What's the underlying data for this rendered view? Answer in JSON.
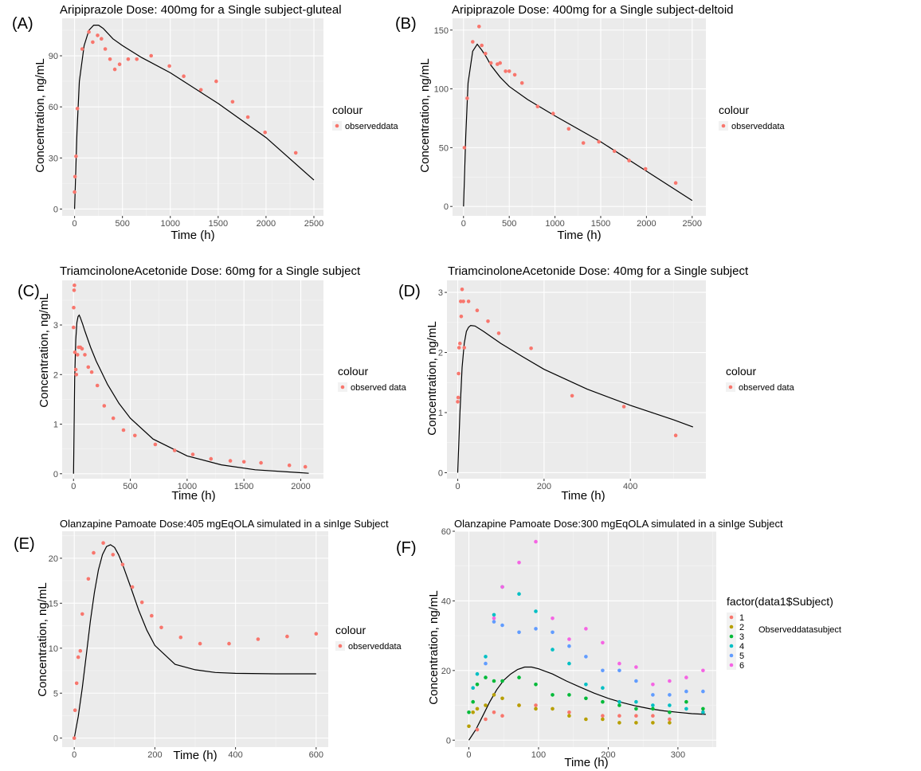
{
  "chart_data": [
    {
      "panel": "(A)",
      "type": "scatter",
      "title": "Aripiprazole  Dose: 400mg for a Single subject-gluteal",
      "xlabel": "Time (h)",
      "ylabel": "Concentration, ng/mL",
      "xlim": [
        -130,
        2600
      ],
      "ylim": [
        -4,
        112
      ],
      "xticks": [
        0,
        500,
        1000,
        1500,
        2000,
        2500
      ],
      "yticks": [
        0,
        30,
        60,
        90
      ],
      "grid": true,
      "legend": {
        "title": "colour",
        "entries": [
          "observeddata"
        ],
        "placement": "right"
      },
      "series": [
        {
          "name": "observeddata",
          "kind": "points",
          "color": "#F8766D",
          "x": [
            0,
            5,
            15,
            30,
            80,
            150,
            190,
            240,
            280,
            320,
            370,
            420,
            470,
            560,
            650,
            800,
            990,
            1140,
            1320,
            1480,
            1650,
            1810,
            1990,
            2310
          ],
          "y": [
            10,
            19,
            31,
            59,
            94,
            104,
            98,
            102,
            100,
            94,
            88,
            82,
            85,
            88,
            88,
            90,
            84,
            78,
            70,
            75,
            63,
            54,
            45,
            33
          ]
        },
        {
          "kind": "line",
          "color": "#000000",
          "x": [
            0,
            25,
            50,
            100,
            150,
            200,
            250,
            300,
            400,
            500,
            700,
            1000,
            1500,
            2000,
            2500
          ],
          "y": [
            0,
            45,
            75,
            96,
            105,
            108,
            108,
            106,
            100,
            96,
            89,
            80,
            62,
            42,
            17
          ]
        }
      ]
    },
    {
      "panel": "(B)",
      "type": "scatter",
      "title": "Aripiprazole  Dose: 400mg for a Single subject-deltoid",
      "xlabel": "Time (h)",
      "ylabel": "Concentration, ng/mL",
      "xlim": [
        -120,
        2650
      ],
      "ylim": [
        -8,
        160
      ],
      "xticks": [
        0,
        500,
        1000,
        1500,
        2000,
        2500
      ],
      "yticks": [
        0,
        50,
        100,
        150
      ],
      "grid": true,
      "legend": {
        "title": "colour",
        "entries": [
          "observeddata"
        ],
        "placement": "right"
      },
      "series": [
        {
          "name": "observeddata",
          "kind": "points",
          "color": "#F8766D",
          "x": [
            10,
            40,
            100,
            170,
            200,
            240,
            300,
            370,
            400,
            460,
            500,
            560,
            640,
            810,
            980,
            1150,
            1310,
            1480,
            1650,
            1810,
            1990,
            2320
          ],
          "y": [
            50,
            92,
            140,
            153,
            137,
            130,
            122,
            121,
            122,
            115,
            115,
            112,
            105,
            85,
            79,
            66,
            54,
            55,
            47,
            39,
            32,
            20
          ]
        },
        {
          "kind": "line",
          "color": "#000000",
          "x": [
            0,
            25,
            50,
            100,
            150,
            200,
            250,
            300,
            400,
            500,
            700,
            1000,
            1500,
            2000,
            2500
          ],
          "y": [
            0,
            60,
            105,
            132,
            138,
            133,
            127,
            120,
            110,
            102,
            91,
            77,
            55,
            30,
            5
          ]
        }
      ]
    },
    {
      "panel": "(C)",
      "type": "scatter",
      "title": "TriamcinoloneAcetonide  Dose: 60mg for a Single subject",
      "xlabel": "Time (h)",
      "ylabel": "Concentration, ng/mL",
      "xlim": [
        -100,
        2200
      ],
      "ylim": [
        -0.1,
        3.9
      ],
      "xticks": [
        0,
        500,
        1000,
        1500,
        2000
      ],
      "yticks": [
        0,
        1,
        2,
        3
      ],
      "grid": true,
      "legend": {
        "title": "colour",
        "entries": [
          "observed data"
        ],
        "placement": "right"
      },
      "series": [
        {
          "name": "observed data",
          "kind": "points",
          "color": "#F8766D",
          "x": [
            0,
            2,
            5,
            8,
            12,
            20,
            25,
            35,
            45,
            60,
            75,
            100,
            130,
            160,
            210,
            270,
            350,
            440,
            540,
            720,
            890,
            1050,
            1210,
            1380,
            1500,
            1650,
            1900,
            2040
          ],
          "y": [
            2.95,
            3.35,
            3.7,
            3.8,
            2.45,
            2.1,
            2.0,
            2.4,
            2.55,
            2.55,
            2.52,
            2.4,
            2.15,
            2.05,
            1.78,
            1.37,
            1.12,
            0.88,
            0.77,
            0.59,
            0.47,
            0.39,
            0.3,
            0.26,
            0.24,
            0.22,
            0.17,
            0.14
          ]
        },
        {
          "kind": "line",
          "color": "#000000",
          "x": [
            0,
            10,
            20,
            30,
            40,
            50,
            60,
            80,
            100,
            150,
            200,
            300,
            400,
            500,
            700,
            1000,
            1300,
            1600,
            2000,
            2070
          ],
          "y": [
            0,
            1.9,
            2.7,
            3.05,
            3.17,
            3.2,
            3.15,
            3.02,
            2.88,
            2.55,
            2.27,
            1.8,
            1.42,
            1.12,
            0.7,
            0.36,
            0.18,
            0.08,
            0.02,
            0.01
          ]
        }
      ]
    },
    {
      "panel": "(D)",
      "type": "scatter",
      "title": "TriamcinoloneAcetonide  Dose: 40mg for a Single subject",
      "xlabel": "Time (h)",
      "ylabel": "Concentration, ng/mL",
      "xlim": [
        -25,
        575
      ],
      "ylim": [
        -0.1,
        3.2
      ],
      "xticks": [
        0,
        200,
        400
      ],
      "yticks": [
        0,
        1,
        2,
        3
      ],
      "grid": true,
      "legend": {
        "title": "colour",
        "entries": [
          "observed data"
        ],
        "placement": "right"
      },
      "series": [
        {
          "name": "observed data",
          "kind": "points",
          "color": "#F8766D",
          "x": [
            0,
            1,
            2,
            3,
            5,
            7,
            8,
            10,
            13,
            15,
            25,
            45,
            70,
            95,
            170,
            265,
            385,
            505
          ],
          "y": [
            1.18,
            1.25,
            1.65,
            2.08,
            2.15,
            2.85,
            2.6,
            3.05,
            2.85,
            2.08,
            2.85,
            2.7,
            2.52,
            2.32,
            2.07,
            1.28,
            1.1,
            0.62
          ]
        },
        {
          "kind": "line",
          "color": "#000000",
          "x": [
            0,
            5,
            10,
            15,
            20,
            25,
            30,
            40,
            60,
            80,
            100,
            150,
            200,
            300,
            400,
            500,
            545
          ],
          "y": [
            0,
            1.0,
            1.75,
            2.15,
            2.35,
            2.42,
            2.45,
            2.44,
            2.35,
            2.25,
            2.15,
            1.93,
            1.72,
            1.39,
            1.12,
            0.88,
            0.76
          ]
        }
      ]
    },
    {
      "panel": "(E)",
      "type": "scatter",
      "title": "Olanzapine Pamoate Dose:405 mgEqOLA simulated in a sinIge Subject",
      "xlabel": "Time (h)",
      "ylabel": "Concentration, ng/mL",
      "xlim": [
        -30,
        630
      ],
      "ylim": [
        -1,
        23
      ],
      "xticks": [
        0,
        200,
        400,
        600
      ],
      "yticks": [
        0,
        5,
        10,
        15,
        20
      ],
      "grid": true,
      "legend": {
        "title": "colour",
        "entries": [
          "observeddata"
        ],
        "placement": "right"
      },
      "series": [
        {
          "name": "observeddata",
          "kind": "points",
          "color": "#F8766D",
          "x": [
            0,
            2,
            6,
            10,
            15,
            20,
            35,
            48,
            72,
            96,
            120,
            144,
            168,
            192,
            216,
            264,
            312,
            384,
            456,
            528,
            600
          ],
          "y": [
            0,
            3.1,
            6.1,
            9.0,
            9.7,
            13.8,
            17.7,
            20.6,
            21.7,
            20.4,
            19.3,
            16.8,
            15.1,
            13.6,
            12.3,
            11.2,
            10.5,
            10.5,
            11.0,
            11.3,
            11.6
          ]
        },
        {
          "kind": "line",
          "color": "#000000",
          "x": [
            0,
            10,
            20,
            30,
            40,
            50,
            60,
            70,
            80,
            90,
            100,
            110,
            120,
            140,
            160,
            180,
            200,
            250,
            300,
            350,
            400,
            500,
            600
          ],
          "y": [
            0,
            2.4,
            5.6,
            9.3,
            13.0,
            16.2,
            18.7,
            20.4,
            21.3,
            21.5,
            21.2,
            20.4,
            19.3,
            16.8,
            14.2,
            12.0,
            10.3,
            8.2,
            7.6,
            7.3,
            7.2,
            7.15,
            7.15
          ]
        }
      ]
    },
    {
      "panel": "(F)",
      "type": "scatter",
      "title": "Olanzapine Pamoate Dose:300 mgEqOLA simulated in a sinIge Subject",
      "xlabel": "Time (h)",
      "ylabel": "Concentration, ng/mL",
      "xlim": [
        -20,
        355
      ],
      "ylim": [
        -2,
        60
      ],
      "xticks": [
        0,
        100,
        200,
        300
      ],
      "yticks": [
        0,
        20,
        40,
        60
      ],
      "grid": true,
      "legend": {
        "title": "factor(data1$Subject)",
        "entries": [
          "1",
          "2",
          "3",
          "4",
          "5",
          "6"
        ],
        "placement": "right",
        "note": "Observeddatasubject"
      },
      "series": [
        {
          "name": "1",
          "kind": "points",
          "color": "#F8766D",
          "x": [
            12,
            24,
            36,
            48,
            72,
            96,
            144,
            192,
            216,
            240,
            264,
            288,
            336
          ],
          "y": [
            3,
            6,
            8,
            7,
            10,
            10,
            8,
            7,
            7,
            7,
            7,
            6,
            8
          ]
        },
        {
          "name": "2",
          "kind": "points",
          "color": "#B79F00",
          "x": [
            0,
            6,
            12,
            24,
            36,
            48,
            72,
            96,
            120,
            144,
            168,
            192,
            216,
            240,
            264,
            288
          ],
          "y": [
            4,
            8,
            9,
            10,
            13,
            12,
            10,
            9,
            9,
            7,
            6,
            6,
            5,
            5,
            5,
            5
          ]
        },
        {
          "name": "3",
          "kind": "points",
          "color": "#00BA38",
          "x": [
            0,
            6,
            12,
            24,
            36,
            48,
            72,
            96,
            120,
            144,
            168,
            192,
            216,
            240,
            264,
            288,
            312,
            336
          ],
          "y": [
            8,
            11,
            16,
            18,
            17,
            17,
            18,
            16,
            13,
            13,
            12,
            11,
            10,
            9,
            9,
            8,
            11,
            9
          ]
        },
        {
          "name": "4",
          "kind": "points",
          "color": "#00BFC4",
          "x": [
            6,
            12,
            24,
            36,
            48,
            72,
            96,
            120,
            144,
            168,
            192,
            216,
            240,
            264,
            288,
            312,
            336
          ],
          "y": [
            15,
            19,
            24,
            36,
            44,
            42,
            37,
            26,
            22,
            16,
            15,
            11,
            11,
            10,
            10,
            9,
            8
          ]
        },
        {
          "name": "5",
          "kind": "points",
          "color": "#619CFF",
          "x": [
            24,
            36,
            48,
            72,
            96,
            120,
            144,
            168,
            192,
            216,
            240,
            264,
            288,
            312,
            336
          ],
          "y": [
            22,
            34,
            33,
            31,
            32,
            31,
            27,
            24,
            20,
            20,
            17,
            13,
            13,
            14,
            14
          ]
        },
        {
          "name": "6",
          "kind": "points",
          "color": "#F564E3",
          "x": [
            36,
            48,
            72,
            96,
            120,
            144,
            168,
            192,
            216,
            240,
            264,
            288,
            312,
            336
          ],
          "y": [
            35,
            44,
            51,
            57,
            35,
            29,
            32,
            28,
            22,
            21,
            16,
            17,
            18,
            20
          ]
        },
        {
          "kind": "line",
          "color": "#000000",
          "x": [
            0,
            10,
            20,
            30,
            40,
            50,
            60,
            70,
            80,
            90,
            100,
            120,
            140,
            160,
            180,
            200,
            220,
            240,
            260,
            280,
            300,
            320,
            340
          ],
          "y": [
            0,
            3,
            7,
            11,
            14.5,
            17.2,
            19,
            20.3,
            21,
            21,
            20.5,
            19,
            17,
            15.2,
            13.5,
            12,
            10.8,
            9.8,
            9,
            8.4,
            8,
            7.6,
            7.4
          ]
        }
      ]
    }
  ]
}
